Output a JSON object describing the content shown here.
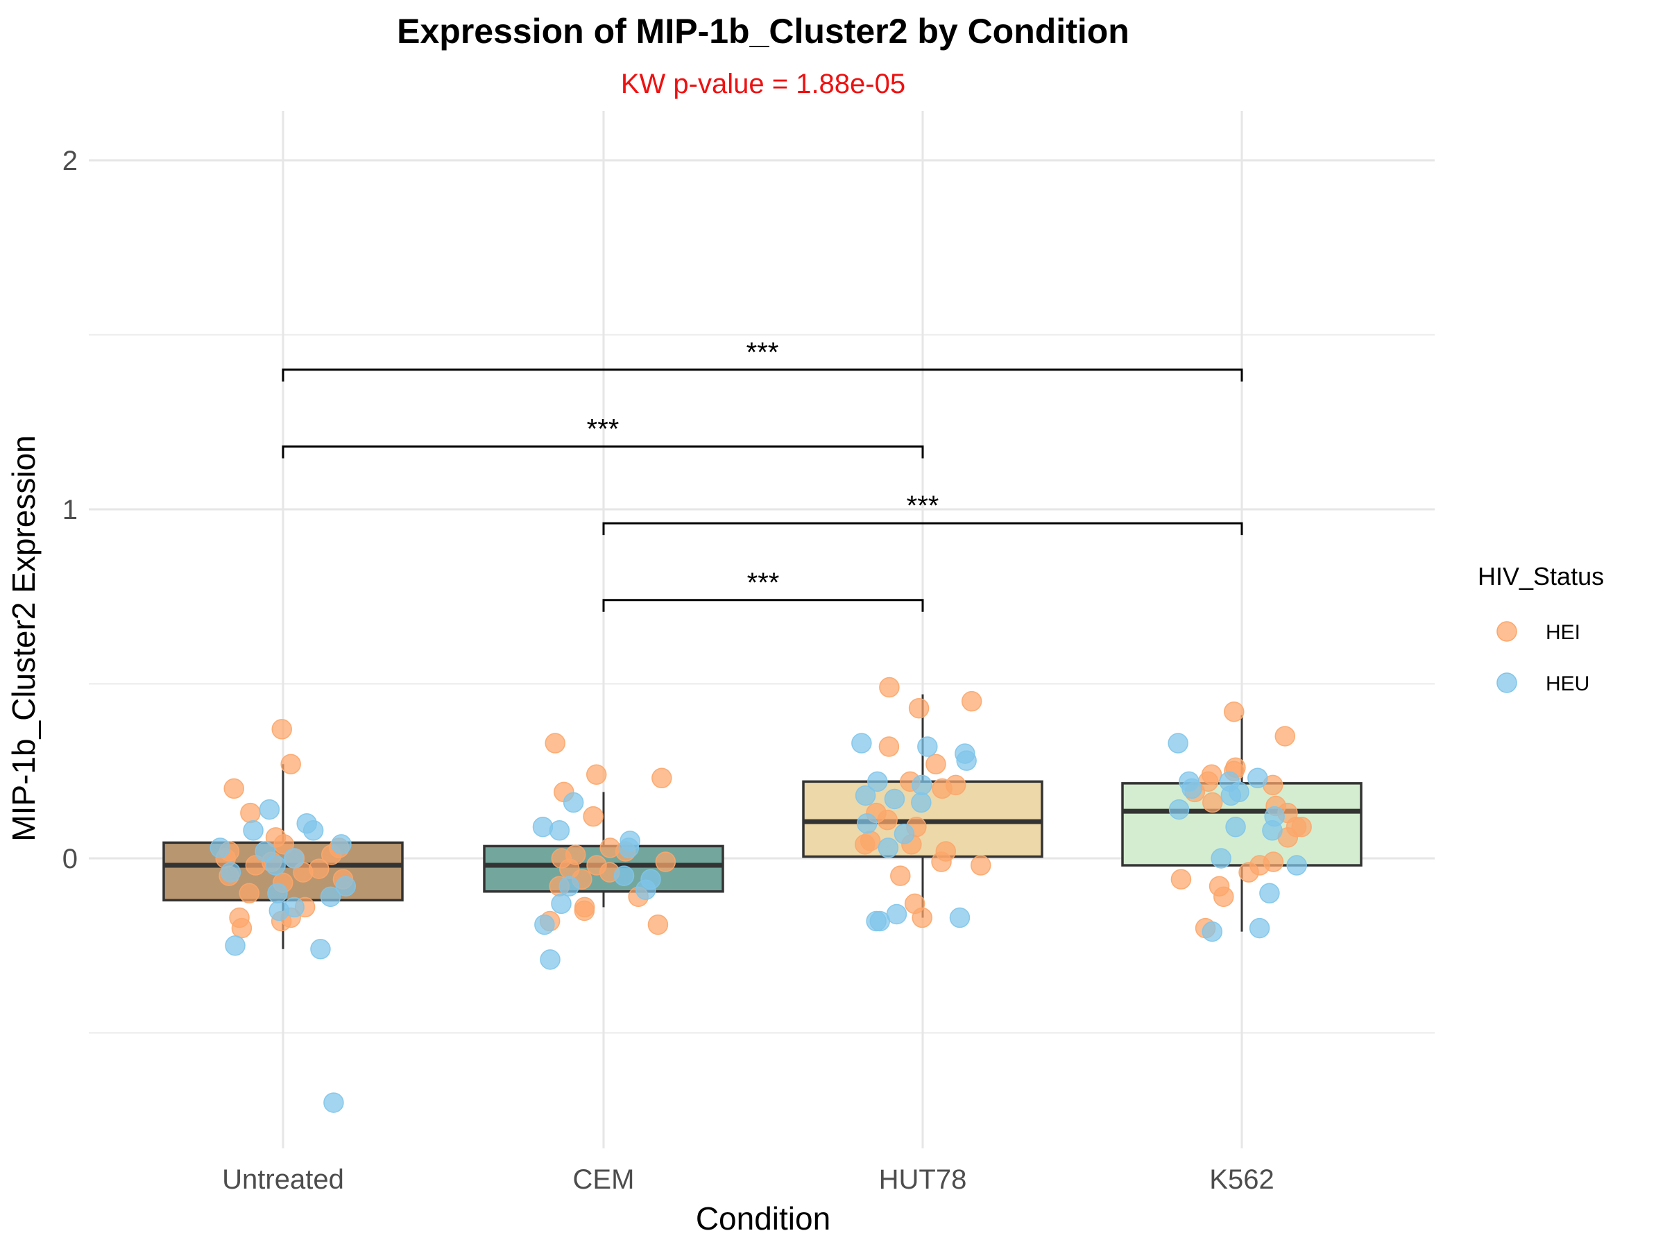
{
  "chart_data": {
    "type": "box",
    "title": "Expression of MIP-1b_Cluster2 by Condition",
    "subtitle": "KW p-value = 1.88e-05",
    "subtitle_color": "#ee1111",
    "xlabel": "Condition",
    "ylabel": "MIP-1b_Cluster2 Expression",
    "ylim": [
      -0.82,
      2.11
    ],
    "y_ticks": [
      0,
      1,
      2
    ],
    "y_tick_labels": [
      "0",
      "1",
      "2"
    ],
    "grid": true,
    "categories": [
      "Untreated",
      "CEM",
      "HUT78",
      "K562"
    ],
    "box_colors": [
      "#b89670",
      "#73a79e",
      "#edd8a9",
      "#d4edd0"
    ],
    "boxes": [
      {
        "category": "Untreated",
        "lower_whisker": -0.26,
        "q1": -0.12,
        "median": -0.02,
        "q3": 0.045,
        "upper_whisker": 0.27
      },
      {
        "category": "CEM",
        "lower_whisker": -0.14,
        "q1": -0.095,
        "median": -0.02,
        "q3": 0.035,
        "upper_whisker": 0.19
      },
      {
        "category": "HUT78",
        "lower_whisker": -0.17,
        "q1": 0.005,
        "median": 0.105,
        "q3": 0.22,
        "upper_whisker": 0.47
      },
      {
        "category": "K562",
        "lower_whisker": -0.21,
        "q1": -0.02,
        "median": 0.135,
        "q3": 0.215,
        "upper_whisker": 0.41
      }
    ],
    "legend": {
      "title": "HIV_Status",
      "position": "right",
      "entries": [
        {
          "label": "HEI",
          "color": "#fca66a"
        },
        {
          "label": "HEU",
          "color": "#80c5ea"
        }
      ]
    },
    "points": {
      "HEI": [
        [
          0,
          0.37
        ],
        [
          0,
          0.27
        ],
        [
          0,
          0.2
        ],
        [
          0,
          0.13
        ],
        [
          0,
          0.06
        ],
        [
          0,
          0.04
        ],
        [
          0,
          0.02
        ],
        [
          0,
          0.01
        ],
        [
          0,
          0.0
        ],
        [
          0,
          -0.01
        ],
        [
          0,
          -0.02
        ],
        [
          0,
          -0.03
        ],
        [
          0,
          -0.04
        ],
        [
          0,
          -0.05
        ],
        [
          0,
          -0.07
        ],
        [
          0,
          -0.1
        ],
        [
          0,
          -0.14
        ],
        [
          0,
          -0.17
        ],
        [
          0,
          -0.17
        ],
        [
          0,
          -0.18
        ],
        [
          0,
          -0.2
        ],
        [
          0,
          -0.0
        ],
        [
          0,
          0.03
        ],
        [
          0,
          -0.06
        ],
        [
          1,
          0.33
        ],
        [
          1,
          0.24
        ],
        [
          1,
          0.23
        ],
        [
          1,
          0.19
        ],
        [
          1,
          0.12
        ],
        [
          1,
          0.03
        ],
        [
          1,
          0.02
        ],
        [
          1,
          0.01
        ],
        [
          1,
          0.0
        ],
        [
          1,
          -0.01
        ],
        [
          1,
          -0.02
        ],
        [
          1,
          -0.03
        ],
        [
          1,
          -0.04
        ],
        [
          1,
          -0.06
        ],
        [
          1,
          -0.08
        ],
        [
          1,
          -0.11
        ],
        [
          1,
          -0.14
        ],
        [
          1,
          -0.15
        ],
        [
          1,
          -0.18
        ],
        [
          1,
          -0.19
        ],
        [
          2,
          0.49
        ],
        [
          2,
          0.45
        ],
        [
          2,
          0.43
        ],
        [
          2,
          0.32
        ],
        [
          2,
          0.27
        ],
        [
          2,
          0.22
        ],
        [
          2,
          0.21
        ],
        [
          2,
          0.2
        ],
        [
          2,
          0.13
        ],
        [
          2,
          0.11
        ],
        [
          2,
          0.09
        ],
        [
          2,
          0.05
        ],
        [
          2,
          0.04
        ],
        [
          2,
          0.04
        ],
        [
          2,
          0.02
        ],
        [
          2,
          -0.01
        ],
        [
          2,
          -0.02
        ],
        [
          2,
          -0.05
        ],
        [
          2,
          -0.13
        ],
        [
          2,
          -0.17
        ],
        [
          3,
          0.42
        ],
        [
          3,
          0.35
        ],
        [
          3,
          0.26
        ],
        [
          3,
          0.25
        ],
        [
          3,
          0.24
        ],
        [
          3,
          0.22
        ],
        [
          3,
          0.21
        ],
        [
          3,
          0.19
        ],
        [
          3,
          0.16
        ],
        [
          3,
          0.15
        ],
        [
          3,
          0.13
        ],
        [
          3,
          0.09
        ],
        [
          3,
          0.09
        ],
        [
          3,
          0.06
        ],
        [
          3,
          -0.01
        ],
        [
          3,
          -0.02
        ],
        [
          3,
          -0.04
        ],
        [
          3,
          -0.06
        ],
        [
          3,
          -0.08
        ],
        [
          3,
          -0.11
        ],
        [
          3,
          -0.2
        ]
      ],
      "HEU": [
        [
          0,
          0.14
        ],
        [
          0,
          0.1
        ],
        [
          0,
          0.08
        ],
        [
          0,
          0.08
        ],
        [
          0,
          0.04
        ],
        [
          0,
          0.03
        ],
        [
          0,
          0.02
        ],
        [
          0,
          0.0
        ],
        [
          0,
          -0.02
        ],
        [
          0,
          -0.04
        ],
        [
          0,
          -0.08
        ],
        [
          0,
          -0.1
        ],
        [
          0,
          -0.11
        ],
        [
          0,
          -0.14
        ],
        [
          0,
          -0.15
        ],
        [
          0,
          -0.25
        ],
        [
          0,
          -0.26
        ],
        [
          0,
          -0.7
        ],
        [
          1,
          0.16
        ],
        [
          1,
          0.09
        ],
        [
          1,
          0.08
        ],
        [
          1,
          0.05
        ],
        [
          1,
          0.03
        ],
        [
          1,
          -0.05
        ],
        [
          1,
          -0.06
        ],
        [
          1,
          -0.08
        ],
        [
          1,
          -0.09
        ],
        [
          1,
          -0.13
        ],
        [
          1,
          -0.19
        ],
        [
          1,
          -0.29
        ],
        [
          2,
          0.33
        ],
        [
          2,
          0.32
        ],
        [
          2,
          0.3
        ],
        [
          2,
          0.28
        ],
        [
          2,
          0.22
        ],
        [
          2,
          0.21
        ],
        [
          2,
          0.18
        ],
        [
          2,
          0.17
        ],
        [
          2,
          0.16
        ],
        [
          2,
          0.1
        ],
        [
          2,
          0.07
        ],
        [
          2,
          0.03
        ],
        [
          2,
          -0.16
        ],
        [
          2,
          -0.17
        ],
        [
          2,
          -0.18
        ],
        [
          2,
          -0.18
        ],
        [
          3,
          0.33
        ],
        [
          3,
          0.23
        ],
        [
          3,
          0.22
        ],
        [
          3,
          0.22
        ],
        [
          3,
          0.2
        ],
        [
          3,
          0.19
        ],
        [
          3,
          0.18
        ],
        [
          3,
          0.14
        ],
        [
          3,
          0.12
        ],
        [
          3,
          0.09
        ],
        [
          3,
          0.08
        ],
        [
          3,
          0.0
        ],
        [
          3,
          -0.02
        ],
        [
          3,
          -0.1
        ],
        [
          3,
          -0.2
        ],
        [
          3,
          -0.21
        ]
      ]
    },
    "significance_brackets": [
      {
        "from": "Untreated",
        "to": "K562",
        "y": 1.4,
        "label": "***"
      },
      {
        "from": "Untreated",
        "to": "HUT78",
        "y": 1.18,
        "label": "***"
      },
      {
        "from": "CEM",
        "to": "K562",
        "y": 0.96,
        "label": "***"
      },
      {
        "from": "CEM",
        "to": "HUT78",
        "y": 0.74,
        "label": "***"
      }
    ]
  }
}
